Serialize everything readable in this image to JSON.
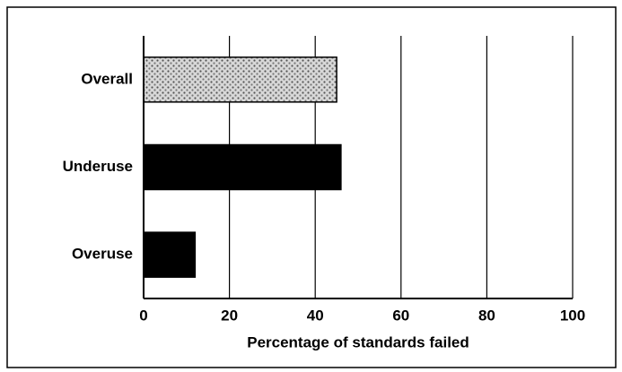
{
  "chart_data": {
    "type": "hbar",
    "xlabel": "Percentage of standards failed",
    "categories": [
      "Overall",
      "Underuse",
      "Overuse"
    ],
    "values": [
      45,
      46,
      12
    ],
    "colors": [
      "#b8b8b8",
      "#000000",
      "#000000"
    ],
    "xlim": [
      0,
      100
    ],
    "xticks": [
      0,
      20,
      40,
      60,
      80,
      100
    ],
    "grid": true
  }
}
